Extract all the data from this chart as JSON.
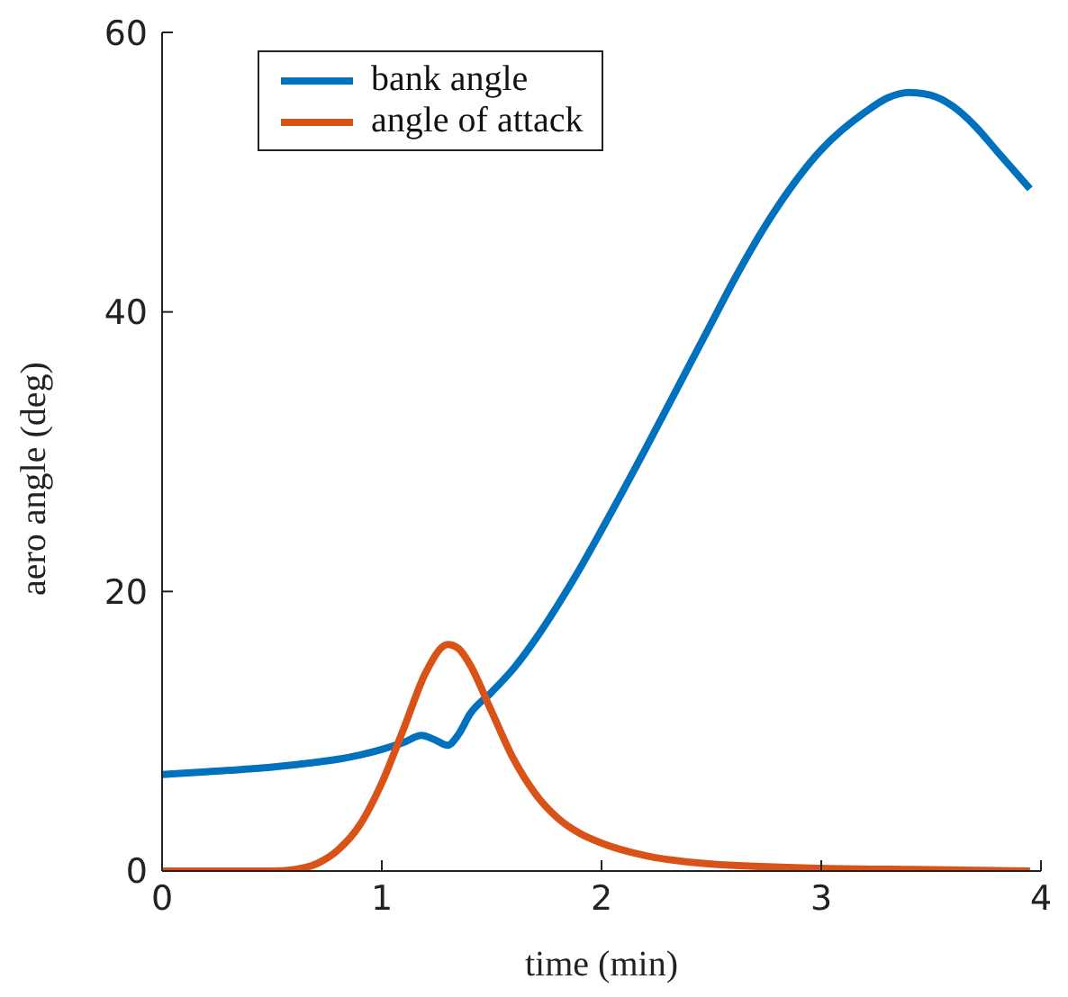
{
  "chart_data": {
    "type": "line",
    "xlabel": "time (min)",
    "ylabel": "aero angle (deg)",
    "xlim": [
      0,
      4
    ],
    "ylim": [
      0,
      60
    ],
    "xticks": [
      0,
      1,
      2,
      3,
      4
    ],
    "yticks": [
      0,
      20,
      40,
      60
    ],
    "grid": false,
    "legend": "top left",
    "marker": "none",
    "line_style": "solid",
    "series": [
      {
        "name": "bank angle",
        "color": "#0072bd",
        "x": [
          0,
          0.2,
          0.4,
          0.6,
          0.8,
          0.9,
          1.0,
          1.1,
          1.18,
          1.24,
          1.3,
          1.35,
          1.4,
          1.5,
          1.6,
          1.7,
          1.8,
          1.9,
          2.0,
          2.2,
          2.4,
          2.5,
          2.6,
          2.8,
          3.0,
          3.2,
          3.3,
          3.4,
          3.5,
          3.6,
          3.7,
          3.8,
          3.95
        ],
        "values": [
          6.9,
          7.1,
          7.3,
          7.6,
          8.0,
          8.3,
          8.7,
          9.2,
          9.7,
          9.4,
          9.0,
          9.8,
          11.2,
          12.8,
          14.5,
          16.6,
          19.0,
          21.6,
          24.4,
          30.2,
          36.2,
          39.2,
          42.2,
          47.5,
          51.6,
          54.3,
          55.3,
          55.7,
          55.5,
          54.7,
          53.3,
          51.5,
          48.8
        ]
      },
      {
        "name": "angle of attack",
        "color": "#d95319",
        "x": [
          0,
          0.5,
          0.6,
          0.7,
          0.8,
          0.9,
          1.0,
          1.1,
          1.2,
          1.3,
          1.35,
          1.4,
          1.5,
          1.6,
          1.7,
          1.8,
          1.9,
          2.0,
          2.2,
          2.5,
          3.0,
          3.5,
          3.95
        ],
        "values": [
          0,
          0,
          0.1,
          0.5,
          1.5,
          3.3,
          6.3,
          10.2,
          14.2,
          16.2,
          15.9,
          14.8,
          11.4,
          8.0,
          5.5,
          3.8,
          2.7,
          2.0,
          1.1,
          0.5,
          0.2,
          0.1,
          0
        ]
      }
    ]
  }
}
